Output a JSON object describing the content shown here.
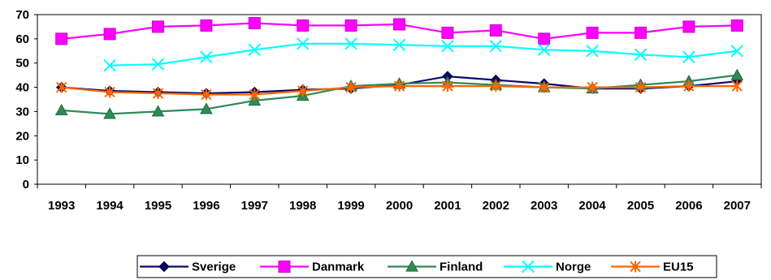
{
  "chart_data": {
    "type": "line",
    "title": "",
    "xlabel": "",
    "ylabel": "",
    "categories": [
      "1993",
      "1994",
      "1995",
      "1996",
      "1997",
      "1998",
      "1999",
      "2000",
      "2001",
      "2002",
      "2003",
      "2004",
      "2005",
      "2006",
      "2007"
    ],
    "ylim": [
      0,
      70
    ],
    "yticks": [
      "0",
      "10",
      "20",
      "30",
      "40",
      "50",
      "60",
      "70"
    ],
    "grid": false,
    "legend_position": "bottom",
    "series": [
      {
        "name": "Sverige",
        "color": "#0a0a6e",
        "marker": "diamond",
        "values": [
          40,
          38.5,
          38,
          37.5,
          38,
          39,
          39.5,
          41,
          44.5,
          43,
          41.5,
          39.5,
          39.5,
          40.5,
          42.5
        ]
      },
      {
        "name": "Danmark",
        "color": "#ff00ff",
        "marker": "square",
        "values": [
          60,
          62,
          65,
          65.5,
          66.5,
          65.5,
          65.5,
          66,
          62.5,
          63.5,
          60,
          62.5,
          62.5,
          65,
          65.5
        ]
      },
      {
        "name": "Finland",
        "color": "#2e8b57",
        "marker": "triangle",
        "values": [
          30.5,
          29,
          30,
          31,
          34.5,
          36.5,
          40.5,
          41.5,
          42,
          41,
          40,
          39.5,
          41,
          42.5,
          45
        ]
      },
      {
        "name": "Norge",
        "color": "#00ffff",
        "marker": "x",
        "values": [
          null,
          49,
          49.5,
          52.5,
          55.5,
          58,
          58,
          57.5,
          57,
          57,
          55.5,
          55,
          53.5,
          52.5,
          55
        ]
      },
      {
        "name": "EU15",
        "color": "#ff6600",
        "marker": "star",
        "values": [
          40,
          38,
          37.5,
          37,
          37,
          38.5,
          40,
          40.5,
          40.5,
          40.5,
          40,
          40,
          40,
          40.5,
          40.5
        ]
      }
    ]
  }
}
